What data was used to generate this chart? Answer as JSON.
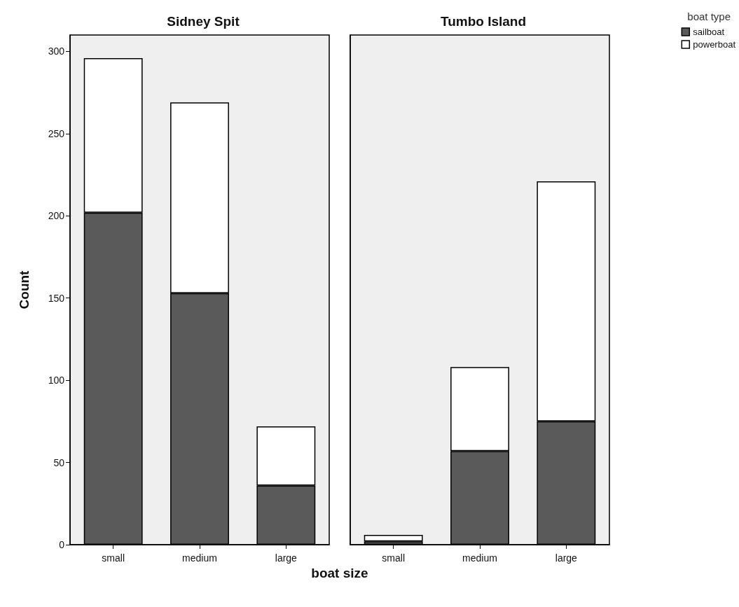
{
  "chart_data": [
    {
      "type": "bar",
      "title": "Sidney Spit",
      "ylabel": "Count",
      "xlabel": "boat size",
      "categories": [
        "small",
        "medium",
        "large"
      ],
      "stacked": true,
      "ylim": [
        0,
        310
      ],
      "yticks": [
        0,
        50,
        100,
        150,
        200,
        250,
        300
      ],
      "grid": false,
      "legend": false,
      "series": [
        {
          "color": "#5a5a5a",
          "values": [
            202,
            153,
            36
          ]
        },
        {
          "color": "#ffffff",
          "values": [
            94,
            116,
            36
          ]
        }
      ]
    },
    {
      "type": "bar",
      "title": "Tumbo Island",
      "legend_title": "boat type",
      "categories": [
        "small",
        "medium",
        "large"
      ],
      "stacked": true,
      "ylim": [
        0,
        310
      ],
      "yticks": [
        0,
        50,
        100,
        150,
        200,
        250,
        300
      ],
      "grid": false,
      "legend": "top right",
      "tick_labels": "x",
      "series": [
        {
          "name": "sailboat",
          "color": "#5a5a5a",
          "values": [
            2,
            57,
            75
          ]
        },
        {
          "name": "powerboat",
          "color": "#ffffff",
          "values": [
            4,
            51,
            146
          ]
        }
      ]
    }
  ]
}
